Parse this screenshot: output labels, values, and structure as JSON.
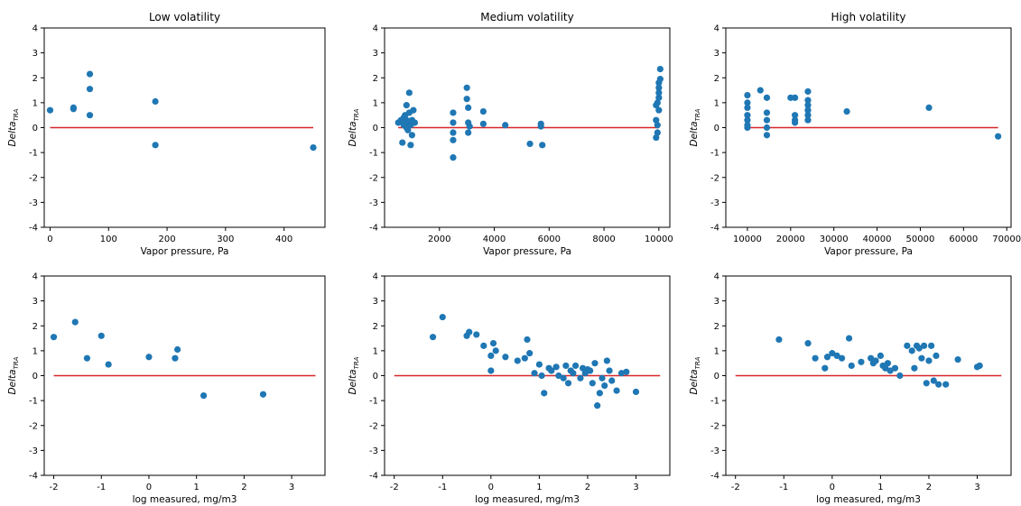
{
  "chart_data": [
    {
      "type": "scatter",
      "title": "Low volatility",
      "xlabel": "Vapor pressure, Pa",
      "ylabel": "Delta",
      "ylabel_subscript": "TRA",
      "xlim": [
        -10,
        470
      ],
      "ylim": [
        -4,
        4
      ],
      "xticks": [
        0,
        100,
        200,
        300,
        400
      ],
      "yticks": [
        -4,
        -3,
        -2,
        -1,
        0,
        1,
        2,
        3,
        4
      ],
      "reference_line": {
        "y": 0,
        "x_range": [
          0,
          450
        ],
        "color": "#d62728"
      },
      "marker_color": "#1f77b4",
      "x": [
        0,
        40,
        40,
        68,
        68,
        68,
        180,
        180,
        450
      ],
      "y": [
        0.7,
        0.75,
        0.8,
        2.15,
        1.55,
        0.5,
        1.05,
        -0.7,
        -0.8
      ]
    },
    {
      "type": "scatter",
      "title": "Medium volatility",
      "xlabel": "Vapor pressure, Pa",
      "ylabel": "Delta",
      "ylabel_subscript": "TRA",
      "xlim": [
        0,
        10400
      ],
      "ylim": [
        -4,
        4
      ],
      "xticks": [
        2000,
        4000,
        6000,
        8000,
        10000
      ],
      "yticks": [
        -4,
        -3,
        -2,
        -1,
        0,
        1,
        2,
        3,
        4
      ],
      "reference_line": {
        "y": 0,
        "x_range": [
          500,
          10000
        ],
        "color": "#d62728"
      },
      "marker_color": "#1f77b4",
      "x": [
        500,
        600,
        650,
        700,
        700,
        750,
        800,
        800,
        800,
        850,
        850,
        900,
        900,
        950,
        950,
        1000,
        1000,
        1050,
        1100,
        2500,
        2500,
        2500,
        2500,
        2500,
        3000,
        3000,
        3050,
        3050,
        3050,
        3100,
        3600,
        3600,
        4400,
        5300,
        5700,
        5700,
        5750,
        9900,
        9900,
        9900,
        9950,
        9950,
        9950,
        10000,
        10000,
        10000,
        10000,
        10000,
        10050,
        10050
      ],
      "y": [
        0.2,
        0.3,
        -0.6,
        0.4,
        0.1,
        0.5,
        0.0,
        0.9,
        0.3,
        0.2,
        -0.1,
        0.6,
        1.4,
        0.1,
        -0.7,
        0.3,
        -0.3,
        0.7,
        0.2,
        0.6,
        0.2,
        -0.2,
        -0.5,
        -1.2,
        1.6,
        1.15,
        0.8,
        0.2,
        -0.2,
        0.05,
        0.65,
        0.15,
        0.1,
        -0.65,
        0.15,
        0.05,
        -0.7,
        0.9,
        0.3,
        -0.4,
        1.0,
        0.1,
        -0.2,
        1.8,
        1.6,
        1.4,
        1.2,
        0.7,
        2.35,
        1.95
      ]
    },
    {
      "type": "scatter",
      "title": "High volatility",
      "xlabel": "Vapor pressure, Pa",
      "ylabel": "Delta",
      "ylabel_subscript": "TRA",
      "xlim": [
        5000,
        71000
      ],
      "ylim": [
        -4,
        4
      ],
      "xticks": [
        10000,
        20000,
        30000,
        40000,
        50000,
        60000,
        70000
      ],
      "yticks": [
        -4,
        -3,
        -2,
        -1,
        0,
        1,
        2,
        3,
        4
      ],
      "reference_line": {
        "y": 0,
        "x_range": [
          10000,
          68000
        ],
        "color": "#d62728"
      },
      "marker_color": "#1f77b4",
      "x": [
        10000,
        10000,
        10000,
        10000,
        10000,
        10000,
        10000,
        13000,
        14500,
        14500,
        14500,
        14500,
        14500,
        20000,
        21000,
        21000,
        21000,
        21000,
        24000,
        24000,
        24000,
        24000,
        24000,
        24000,
        33000,
        52000,
        68000
      ],
      "y": [
        1.3,
        1.0,
        0.8,
        0.5,
        0.3,
        0.1,
        0.0,
        1.5,
        1.2,
        0.6,
        0.3,
        0.0,
        -0.3,
        1.2,
        1.2,
        0.5,
        0.3,
        0.2,
        1.45,
        1.1,
        0.9,
        0.7,
        0.5,
        0.3,
        0.65,
        0.8,
        -0.35
      ]
    },
    {
      "type": "scatter",
      "title": "",
      "xlabel": "log measured, mg/m3",
      "ylabel": "Delta",
      "ylabel_subscript": "TRA",
      "xlim": [
        -2.2,
        3.7
      ],
      "ylim": [
        -4,
        4
      ],
      "xticks": [
        -2,
        -1,
        0,
        1,
        2,
        3
      ],
      "yticks": [
        -4,
        -3,
        -2,
        -1,
        0,
        1,
        2,
        3,
        4
      ],
      "reference_line": {
        "y": 0,
        "x_range": [
          -2,
          3.5
        ],
        "color": "#d62728"
      },
      "marker_color": "#1f77b4",
      "x": [
        -2.0,
        -1.55,
        -1.3,
        -1.0,
        -0.85,
        0.0,
        0.55,
        0.6,
        1.15,
        2.4
      ],
      "y": [
        1.55,
        2.15,
        0.7,
        1.6,
        0.45,
        0.75,
        0.7,
        1.05,
        -0.8,
        -0.75
      ]
    },
    {
      "type": "scatter",
      "title": "",
      "xlabel": "log measured, mg/m3",
      "ylabel": "Delta",
      "ylabel_subscript": "TRA",
      "xlim": [
        -2.2,
        3.7
      ],
      "ylim": [
        -4,
        4
      ],
      "xticks": [
        -2,
        -1,
        0,
        1,
        2,
        3
      ],
      "yticks": [
        -4,
        -3,
        -2,
        -1,
        0,
        1,
        2,
        3,
        4
      ],
      "reference_line": {
        "y": 0,
        "x_range": [
          -2,
          3.5
        ],
        "color": "#d62728"
      },
      "marker_color": "#1f77b4",
      "x": [
        -1.2,
        -1.0,
        -0.5,
        -0.45,
        -0.3,
        -0.15,
        0.0,
        0.05,
        0.1,
        0.0,
        0.3,
        0.55,
        0.7,
        0.75,
        0.8,
        0.9,
        1.0,
        1.05,
        1.1,
        1.2,
        1.25,
        1.35,
        1.4,
        1.5,
        1.55,
        1.6,
        1.65,
        1.7,
        1.75,
        1.85,
        1.9,
        1.95,
        2.0,
        2.05,
        2.1,
        2.15,
        2.2,
        2.25,
        2.3,
        2.35,
        2.4,
        2.45,
        2.5,
        2.6,
        2.7,
        2.8,
        3.0
      ],
      "y": [
        1.55,
        2.35,
        1.6,
        1.75,
        1.65,
        1.2,
        0.2,
        1.3,
        1.0,
        0.8,
        0.75,
        0.6,
        0.7,
        1.45,
        0.9,
        0.1,
        0.45,
        0.0,
        -0.7,
        0.3,
        0.2,
        0.35,
        0.0,
        -0.1,
        0.4,
        -0.3,
        0.2,
        0.1,
        0.4,
        -0.1,
        0.3,
        0.1,
        0.25,
        0.2,
        -0.3,
        0.5,
        -1.2,
        -0.7,
        -0.1,
        -0.4,
        0.6,
        0.2,
        -0.2,
        -0.6,
        0.1,
        0.15,
        -0.65
      ]
    },
    {
      "type": "scatter",
      "title": "",
      "xlabel": "log measured, mg/m3",
      "ylabel": "Delta",
      "ylabel_subscript": "TRA",
      "xlim": [
        -2.2,
        3.7
      ],
      "ylim": [
        -4,
        4
      ],
      "xticks": [
        -2,
        -1,
        0,
        1,
        2,
        3
      ],
      "yticks": [
        -4,
        -3,
        -2,
        -1,
        0,
        1,
        2,
        3,
        4
      ],
      "reference_line": {
        "y": 0,
        "x_range": [
          -2,
          3.5
        ],
        "color": "#d62728"
      },
      "marker_color": "#1f77b4",
      "x": [
        -1.1,
        -0.5,
        -0.35,
        -0.15,
        -0.1,
        0.0,
        0.1,
        0.2,
        0.35,
        0.4,
        0.6,
        0.8,
        0.85,
        0.9,
        1.0,
        1.05,
        1.1,
        1.15,
        1.2,
        1.3,
        1.4,
        1.55,
        1.65,
        1.7,
        1.75,
        1.8,
        1.85,
        1.9,
        1.95,
        2.0,
        2.05,
        2.1,
        2.15,
        2.2,
        2.35,
        2.6,
        3.0,
        3.05
      ],
      "y": [
        1.45,
        1.3,
        0.7,
        0.3,
        0.75,
        0.9,
        0.8,
        0.7,
        1.5,
        0.4,
        0.55,
        0.7,
        0.5,
        0.6,
        0.8,
        0.4,
        0.3,
        0.5,
        0.2,
        0.3,
        0.0,
        1.2,
        1.0,
        0.3,
        1.2,
        1.1,
        0.7,
        1.2,
        -0.3,
        0.6,
        1.2,
        -0.2,
        0.8,
        -0.35,
        -0.35,
        0.65,
        0.35,
        0.4
      ]
    }
  ]
}
